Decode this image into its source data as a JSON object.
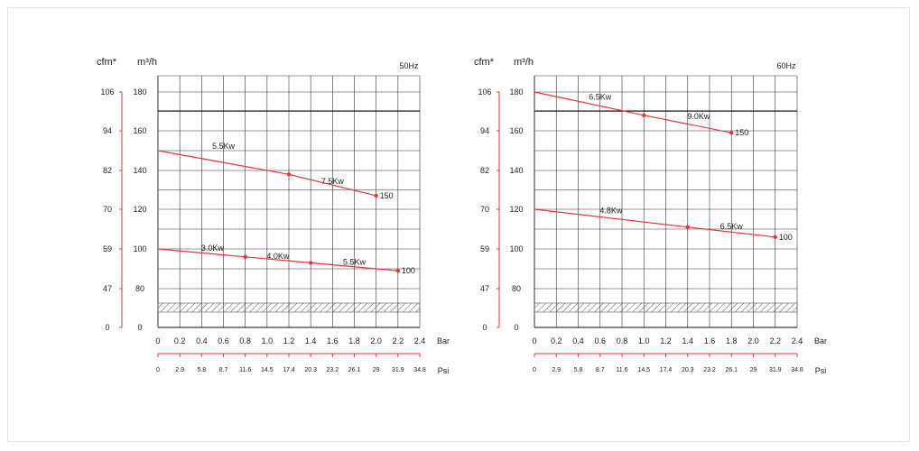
{
  "chart_data": [
    {
      "type": "line",
      "title": "50Hz",
      "x": [
        0,
        0.2,
        0.4,
        0.6,
        0.8,
        1.0,
        1.2,
        1.4,
        1.6,
        1.8,
        2.0,
        2.2,
        2.4
      ],
      "x_tick_labels": [
        "0",
        "0.2",
        "0.4",
        "0.6",
        "0.8",
        "1.0",
        "1.2",
        "1.4",
        "1.6",
        "1.8",
        "2.0",
        "2.2",
        "2.4"
      ],
      "xlabel": "Bar",
      "xlim": [
        0,
        2.4
      ],
      "x2label": "Psi",
      "x2_tick_labels": [
        "0",
        "2.9",
        "5.8",
        "8.7",
        "11.6",
        "14.5",
        "17.4",
        "20.3",
        "23.2",
        "26.1",
        "29",
        "31.9",
        "34.8"
      ],
      "ylabel": "m³/h",
      "ylim": [
        0,
        180
      ],
      "y_tick_labels": [
        "0",
        "80",
        "100",
        "120",
        "140",
        "160",
        "180"
      ],
      "y2label": "cfm*",
      "y2_tick_labels": [
        "0",
        "47",
        "59",
        "70",
        "82",
        "94",
        "106"
      ],
      "hatched_band": [
        14,
        19
      ],
      "grid": true,
      "series": [
        {
          "x": [
            0,
            1.2,
            2.0
          ],
          "y": [
            150,
            138,
            127
          ],
          "markers": [
            1.2,
            2.0
          ],
          "end_label": "150"
        },
        {
          "x": [
            0,
            0.8,
            1.4,
            2.2
          ],
          "y": [
            100,
            96,
            93,
            89
          ],
          "markers": [
            0.8,
            1.4,
            2.2
          ],
          "end_label": "100"
        }
      ],
      "annotations": [
        {
          "text": "5.5Kw",
          "x": 0.6,
          "y": 151
        },
        {
          "text": "7.5Kw",
          "x": 1.6,
          "y": 133
        },
        {
          "text": "3.0Kw",
          "x": 0.5,
          "y": 99
        },
        {
          "text": "4.0Kw",
          "x": 1.1,
          "y": 95
        },
        {
          "text": "5.5Kw",
          "x": 1.8,
          "y": 92
        }
      ]
    },
    {
      "type": "line",
      "title": "60Hz",
      "x": [
        0,
        0.2,
        0.4,
        0.6,
        0.8,
        1.0,
        1.2,
        1.4,
        1.6,
        1.8,
        2.0,
        2.2,
        2.4
      ],
      "x_tick_labels": [
        "0",
        "0.2",
        "0.4",
        "0.6",
        "0.8",
        "1.0",
        "1.2",
        "1.4",
        "1.6",
        "1.8",
        "2.0",
        "2.2",
        "2.4"
      ],
      "xlabel": "Bar",
      "xlim": [
        0,
        2.4
      ],
      "x2label": "Psi",
      "x2_tick_labels": [
        "0",
        "2.9",
        "5.8",
        "8.7",
        "11.6",
        "14.5",
        "17.4",
        "20.3",
        "23.2",
        "26.1",
        "29",
        "31.9",
        "34.8"
      ],
      "ylabel": "m³/h",
      "ylim": [
        0,
        180
      ],
      "y_tick_labels": [
        "0",
        "80",
        "100",
        "120",
        "140",
        "160",
        "180"
      ],
      "y2label": "cfm*",
      "y2_tick_labels": [
        "0",
        "47",
        "59",
        "70",
        "82",
        "94",
        "106"
      ],
      "hatched_band": [
        14,
        19
      ],
      "grid": true,
      "series": [
        {
          "x": [
            0,
            1.0,
            1.8
          ],
          "y": [
            180,
            168,
            159
          ],
          "markers": [
            1.0,
            1.8
          ],
          "end_label": "150"
        },
        {
          "x": [
            0,
            1.4,
            2.2
          ],
          "y": [
            120,
            111,
            106
          ],
          "markers": [
            1.4,
            2.2
          ],
          "end_label": "100"
        }
      ],
      "annotations": [
        {
          "text": "6.5Kw",
          "x": 0.6,
          "y": 176
        },
        {
          "text": "9.0Kw",
          "x": 1.5,
          "y": 166
        },
        {
          "text": "4.8Kw",
          "x": 0.7,
          "y": 118
        },
        {
          "text": "6.5Kw",
          "x": 1.8,
          "y": 110
        }
      ]
    }
  ],
  "colors": {
    "curve": "#e8343a",
    "grid": "#333333",
    "frame": "#e3e3e3",
    "hatch": "#555555"
  }
}
